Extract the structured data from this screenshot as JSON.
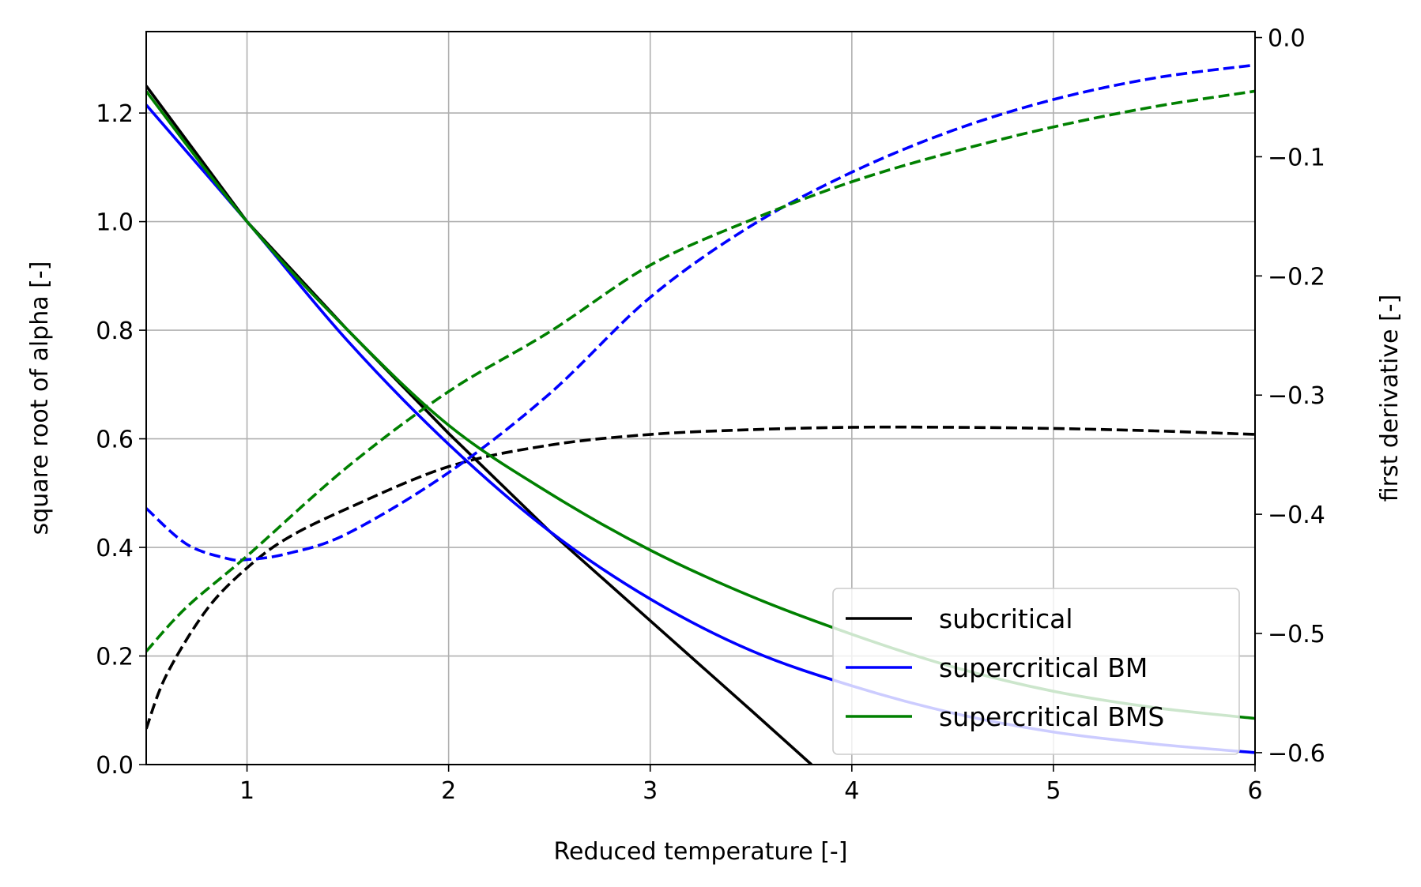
{
  "chart_data": {
    "type": "line",
    "title": "",
    "xlabel": "Reduced temperature [-]",
    "ylabel": "square root of alpha [-]",
    "y2label": "first derivative [-]",
    "xlim": [
      0.5,
      6
    ],
    "ylim": [
      0,
      1.35
    ],
    "y2lim": [
      -0.61,
      0.005
    ],
    "xticks": [
      1,
      2,
      3,
      4,
      5,
      6
    ],
    "yticks": [
      0.0,
      0.2,
      0.4,
      0.6,
      0.8,
      1.0,
      1.2
    ],
    "y2ticks": [
      0.0,
      -0.1,
      -0.2,
      -0.3,
      -0.4,
      -0.5,
      -0.6
    ],
    "grid": true,
    "legend_position": "lower-right",
    "series": [
      {
        "name": "subcritical",
        "color": "#000000",
        "axis": "left",
        "style": "solid",
        "x": [
          0.5,
          1.0,
          1.5,
          2.0,
          2.5,
          3.0,
          3.5,
          3.8
        ],
        "y": [
          1.25,
          1.0,
          0.8,
          0.61,
          0.43,
          0.265,
          0.1,
          0.0
        ]
      },
      {
        "name": "",
        "color": "#000000",
        "axis": "right",
        "style": "dashed",
        "x": [
          0.5,
          0.6,
          0.8,
          1.0,
          1.2,
          1.5,
          2.0,
          2.5,
          3.0,
          3.5,
          4.0,
          4.5,
          5.0,
          5.5,
          6.0
        ],
        "y": [
          -0.58,
          -0.535,
          -0.48,
          -0.445,
          -0.42,
          -0.395,
          -0.36,
          -0.342,
          -0.333,
          -0.329,
          -0.327,
          -0.327,
          -0.328,
          -0.33,
          -0.333
        ]
      },
      {
        "name": "supercritical BM",
        "color": "#0000ff",
        "axis": "left",
        "style": "solid",
        "x": [
          0.5,
          1.0,
          1.5,
          2.0,
          2.5,
          3.0,
          3.5,
          4.0,
          4.5,
          5.0,
          5.5,
          6.0
        ],
        "y": [
          1.215,
          1.0,
          0.78,
          0.59,
          0.43,
          0.305,
          0.21,
          0.145,
          0.095,
          0.06,
          0.038,
          0.022
        ]
      },
      {
        "name": "",
        "color": "#0000ff",
        "axis": "right",
        "style": "dashed",
        "x": [
          0.5,
          0.7,
          0.9,
          1.0,
          1.2,
          1.5,
          2.0,
          2.5,
          3.0,
          3.5,
          4.0,
          4.5,
          5.0,
          5.5,
          6.0
        ],
        "y": [
          -0.395,
          -0.425,
          -0.437,
          -0.438,
          -0.433,
          -0.416,
          -0.365,
          -0.299,
          -0.218,
          -0.158,
          -0.113,
          -0.078,
          -0.052,
          -0.034,
          -0.023
        ]
      },
      {
        "name": "supercritical BMS",
        "color": "#008000",
        "axis": "left",
        "style": "solid",
        "x": [
          0.5,
          1.0,
          1.5,
          2.0,
          2.5,
          3.0,
          3.5,
          4.0,
          4.5,
          5.0,
          5.5,
          6.0
        ],
        "y": [
          1.24,
          1.0,
          0.8,
          0.625,
          0.5,
          0.395,
          0.31,
          0.24,
          0.18,
          0.135,
          0.105,
          0.085
        ]
      },
      {
        "name": "",
        "color": "#008000",
        "axis": "right",
        "style": "dashed",
        "x": [
          0.5,
          0.7,
          1.0,
          1.5,
          2.0,
          2.5,
          3.0,
          3.5,
          4.0,
          4.5,
          5.0,
          5.5,
          6.0
        ],
        "y": [
          -0.515,
          -0.478,
          -0.435,
          -0.36,
          -0.297,
          -0.247,
          -0.191,
          -0.153,
          -0.121,
          -0.096,
          -0.075,
          -0.058,
          -0.045
        ]
      }
    ]
  }
}
